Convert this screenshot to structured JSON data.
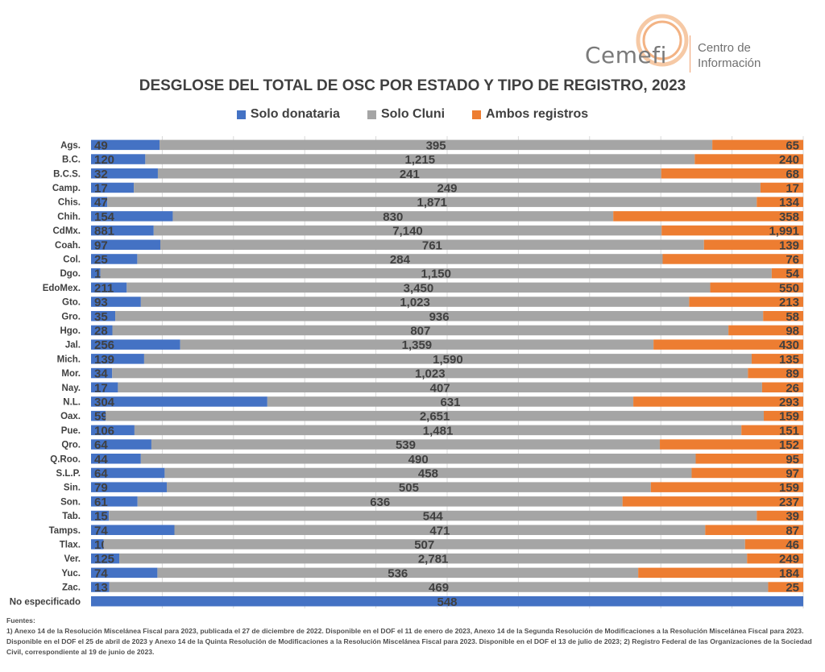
{
  "logo": {
    "wordmark": "Cemefi",
    "subtitle": "Centro de Información"
  },
  "colors": {
    "solo_donataria": "#4472c4",
    "solo_cluni": "#a5a5a5",
    "ambos": "#ed7d31",
    "grid": "#d9d9d9"
  },
  "chart_data": {
    "type": "bar",
    "orientation": "horizontal",
    "stacking": "percent",
    "title": "DESGLOSE DEL TOTAL DE OSC POR ESTADO Y TIPO DE REGISTRO, 2023",
    "legend_position": "top",
    "grid": true,
    "categories": [
      "Ags.",
      "B.C.",
      "B.C.S.",
      "Camp.",
      "Chis.",
      "Chih.",
      "CdMx.",
      "Coah.",
      "Col.",
      "Dgo.",
      "EdoMex.",
      "Gto.",
      "Gro.",
      "Hgo.",
      "Jal.",
      "Mich.",
      "Mor.",
      "Nay.",
      "N.L.",
      "Oax.",
      "Pue.",
      "Qro.",
      "Q.Roo.",
      "S.L.P.",
      "Sin.",
      "Son.",
      "Tab.",
      "Tamps.",
      "Tlax.",
      "Ver.",
      "Yuc.",
      "Zac.",
      "No especificado"
    ],
    "series": [
      {
        "name": "Solo donataria",
        "color": "#4472c4",
        "values": [
          49,
          120,
          32,
          17,
          47,
          154,
          881,
          97,
          25,
          16,
          211,
          93,
          35,
          28,
          256,
          139,
          34,
          17,
          304,
          59,
          106,
          64,
          44,
          64,
          79,
          61,
          15,
          74,
          10,
          125,
          74,
          13,
          548
        ],
        "labels": [
          "49",
          "120",
          "32",
          "17",
          "47",
          "154",
          "881",
          "97",
          "25",
          "16",
          "211",
          "93",
          "35",
          "28",
          "256",
          "139",
          "34",
          "17",
          "304",
          "59",
          "106",
          "64",
          "44",
          "64",
          "79",
          "61",
          "15",
          "74",
          "10",
          "125",
          "74",
          "13",
          "548"
        ]
      },
      {
        "name": "Solo Cluni",
        "color": "#a5a5a5",
        "values": [
          395,
          1215,
          241,
          249,
          1871,
          830,
          7140,
          761,
          284,
          1150,
          3450,
          1023,
          936,
          807,
          1359,
          1590,
          1023,
          407,
          631,
          2651,
          1481,
          539,
          490,
          458,
          505,
          636,
          544,
          471,
          507,
          2781,
          536,
          469,
          0
        ],
        "labels": [
          "395",
          "1,215",
          "241",
          "249",
          "1,871",
          "830",
          "7,140",
          "761",
          "284",
          "1,150",
          "3,450",
          "1,023",
          "936",
          "807",
          "1,359",
          "1,590",
          "1,023",
          "407",
          "631",
          "2,651",
          "1,481",
          "539",
          "490",
          "458",
          "505",
          "636",
          "544",
          "471",
          "507",
          "2,781",
          "536",
          "469",
          ""
        ]
      },
      {
        "name": "Ambos registros",
        "color": "#ed7d31",
        "values": [
          65,
          240,
          68,
          17,
          134,
          358,
          1991,
          139,
          76,
          54,
          550,
          213,
          58,
          98,
          430,
          135,
          89,
          26,
          293,
          159,
          151,
          152,
          95,
          97,
          159,
          237,
          39,
          87,
          46,
          249,
          184,
          25,
          0
        ],
        "labels": [
          "65",
          "240",
          "68",
          "17",
          "134",
          "358",
          "1,991",
          "139",
          "76",
          "54",
          "550",
          "213",
          "58",
          "98",
          "430",
          "135",
          "89",
          "26",
          "293",
          "159",
          "151",
          "152",
          "95",
          "97",
          "159",
          "237",
          "39",
          "87",
          "46",
          "249",
          "184",
          "25",
          ""
        ]
      }
    ]
  },
  "sources": {
    "heading": "Fuentes:",
    "text": "1) Anexo 14 de la Resolución Miscelánea Fiscal para 2023, publicada el 27 de diciembre de 2022. Disponible en el DOF el 11 de enero de 2023, Anexo 14 de la Segunda Resolución de Modificaciones a la Resolución Miscelánea Fiscal para 2023. Disponible en el DOF el 25 de abril de 2023 y Anexo 14 de la Quinta Resolución de Modificaciones a la Resolución Miscelánea Fiscal para 2023. Disponible en el DOF el 13 de julio de 2023; 2) Registro Federal de las Organizaciones de la Sociedad Civil, correspondiente al 19 de junio de 2023."
  }
}
